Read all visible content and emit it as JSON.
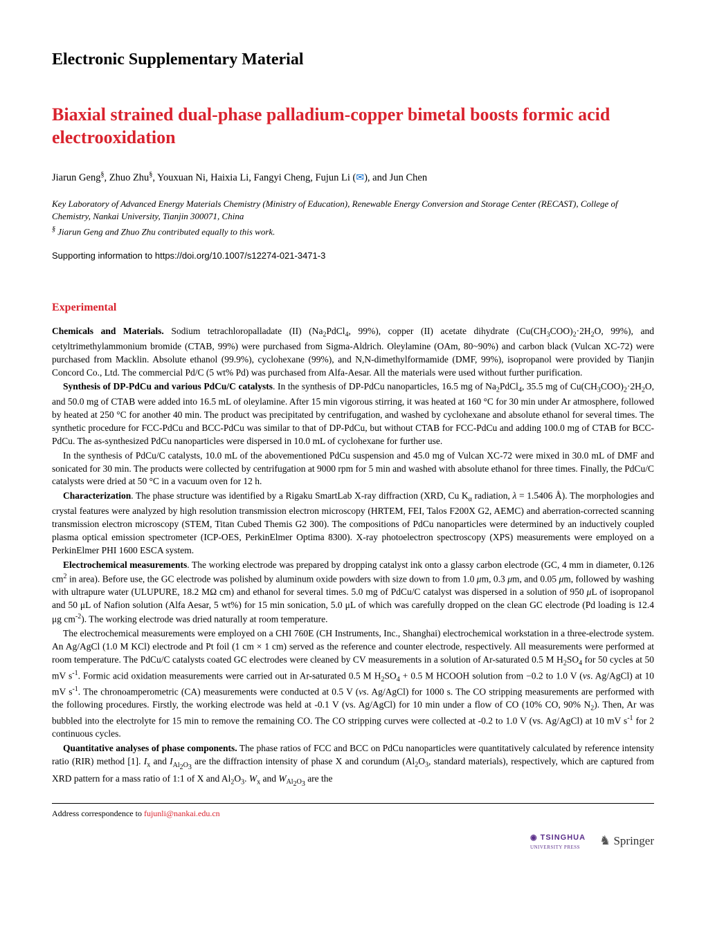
{
  "supp_heading": "Electronic Supplementary Material",
  "title": "Biaxial strained dual-phase palladium-copper bimetal boosts formic acid electrooxidation",
  "authors_html": "Jiarun Geng<sup>§</sup>, Zhuo Zhu<sup>§</sup>, Youxuan Ni, Haixia Li, Fangyi Cheng, Fujun Li (<span class='envelope-icon' data-name='envelope-icon' data-interactable='false'>✉</span>), and Jun Chen",
  "affiliation_html": "Key Laboratory of Advanced Energy Materials Chemistry (Ministry of Education), Renewable Energy Conversion and Storage Center (RECAST), College of Chemistry, Nankai University, Tianjin 300071, China",
  "equal_html": "<sup>§</sup> Jiarun Geng and Zhuo Zhu contributed equally to this work.",
  "supporting_link": "Supporting information to https://doi.org/10.1007/s12274-021-3471-3",
  "section_heading": "Experimental",
  "p1_html": "<span class='subsection-label'>Chemicals and Materials.</span> Sodium tetrachloropalladate (II) (Na<sub>2</sub>PdCl<sub>4</sub>, 99%), copper (II) acetate dihydrate (Cu(CH<sub>3</sub>COO)<sub>2</sub>·2H<sub>2</sub>O, 99%), and cetyltrimethylammonium bromide (CTAB, 99%) were purchased from Sigma-Aldrich. Oleylamine (OAm, 80~90%) and carbon black (Vulcan XC-72) were purchased from Macklin. Absolute ethanol (99.9%), cyclohexane (99%), and N,N-dimethylformamide (DMF, 99%), isopropanol were provided by Tianjin Concord Co., Ltd. The commercial Pd/C (5 wt% Pd) was purchased from Alfa-Aesar. All the materials were used without further purification.",
  "p2_html": "<span class='subsection-label'>Synthesis of DP-PdCu and various PdCu/C catalysts</span>. In the synthesis of DP-PdCu nanoparticles, 16.5 mg of Na<sub>2</sub>PdCl<sub>4</sub>, 35.5 mg of Cu(CH<sub>3</sub>COO)<sub>2</sub>·2H<sub>2</sub>O, and 50.0 mg of CTAB were added into 16.5 mL of oleylamine. After 15 min vigorous stirring, it was heated at 160 °C for 30 min under Ar atmosphere, followed by heated at 250 °C for another 40 min. The product was precipitated by centrifugation, and washed by cyclohexane and absolute ethanol for several times. The synthetic procedure for FCC-PdCu and BCC-PdCu was similar to that of DP-PdCu, but without CTAB for FCC-PdCu and adding 100.0 mg of CTAB for BCC-PdCu. The as-synthesized PdCu nanoparticles were dispersed in 10.0 mL of cyclohexane for further use.",
  "p3_html": "In the synthesis of PdCu/C catalysts, 10.0 mL of the abovementioned PdCu suspension and 45.0 mg of Vulcan XC-72 were mixed in 30.0 mL of DMF and sonicated for 30 min. The products were collected by centrifugation at 9000 rpm for 5 min and washed with absolute ethanol for three times. Finally, the PdCu/C catalysts were dried at 50 °C in a vacuum oven for 12 h.",
  "p4_html": "<span class='subsection-label'>Characterization</span>. The phase structure was identified by a Rigaku SmartLab X-ray diffraction (XRD, Cu K<sub>α</sub> radiation, <i>λ</i> = 1.5406 Å). The morphologies and crystal features were analyzed by high resolution transmission electron microscopy (HRTEM, FEI, Talos F200X G2, AEMC) and aberration-corrected scanning transmission electron microscopy (STEM, Titan Cubed Themis G2 300). The compositions of PdCu nanoparticles were determined by an inductively coupled plasma optical emission spectrometer (ICP-OES, PerkinElmer Optima 8300). X-ray photoelectron spectroscopy (XPS) measurements were employed on a PerkinElmer PHI 1600 ESCA system.",
  "p5_html": "<span class='subsection-label'>Electrochemical measurements</span>. The working electrode was prepared by dropping catalyst ink onto a glassy carbon electrode (GC, 4 mm in diameter, 0.126 cm<sup>2</sup> in area). Before use, the GC electrode was polished by aluminum oxide powders with size down to from 1.0 <i>μ</i>m, 0.3 <i>μ</i>m, and 0.05 <i>μ</i>m, followed by washing with ultrapure water (ULUPURE, 18.2 MΩ cm) and ethanol for several times. 5.0 mg of PdCu/C catalyst was dispersed in a solution of 950 <i>μ</i>L of isopropanol and 50 μL of Nafion solution (Alfa Aesar, 5 wt%) for 15 min sonication, 5.0 μL of which was carefully dropped on the clean GC electrode (Pd loading is 12.4 μg cm<sup>-2</sup>). The working electrode was dried naturally at room temperature.",
  "p6_html": "The electrochemical measurements were employed on a CHI 760E (CH Instruments, Inc., Shanghai) electrochemical workstation in a three-electrode system. An Ag/AgCl (1.0 M KCl) electrode and Pt foil (1 cm × 1 cm) served as the reference and counter electrode, respectively. All measurements were performed at room temperature. The PdCu/C catalysts coated GC electrodes were cleaned by CV measurements in a solution of Ar-saturated 0.5 M H<sub>2</sub>SO<sub>4</sub> for 50 cycles at 50 mV s<sup>-1</sup>. Formic acid oxidation measurements were carried out in Ar-saturated 0.5 M H<sub>2</sub>SO<sub>4</sub> + 0.5 M HCOOH solution from −0.2 to 1.0 V (<i>vs</i>. Ag/AgCl) at 10 mV s<sup>-1</sup>. The chronoamperometric (CA) measurements were conducted at 0.5 V (<i>vs</i>. Ag/AgCl) for 1000 s. The CO stripping measurements are performed with the following procedures. Firstly, the working electrode was held at -0.1 V (vs. Ag/AgCl) for 10 min under a flow of CO (10% CO, 90% N<sub>2</sub>). Then, Ar was bubbled into the electrolyte for 15 min to remove the remaining CO. The CO stripping curves were collected at -0.2 to 1.0 V (vs. Ag/AgCl) at 10 mV s<sup>-1</sup> for 2 continuous cycles.",
  "p7_html": "<span class='subsection-label'>Quantitative analyses of phase components.</span> The phase ratios of FCC and BCC on PdCu nanoparticles were quantitatively calculated by reference intensity ratio (RIR) method [1]. <i>I</i><sub>x</sub> and <i>I</i><sub>Al<sub>2</sub>O<sub>3</sub></sub> are the diffraction intensity of phase X and corundum (Al<sub>2</sub>O<sub>3</sub>, standard materials), respectively, which are captured from XRD pattern for a mass ratio of 1:1 of X and Al<sub>2</sub>O<sub>3</sub>. <i>W</i><sub>x</sub> and <i>W</i><sub>Al<sub>2</sub>O<sub>3</sub></sub> are the",
  "footer_label": "Address correspondence to ",
  "footer_email": "fujunli@nankai.edu.cn",
  "logo_tsinghua": "TSINGHUA",
  "logo_tsinghua_sub": "UNIVERSITY PRESS",
  "logo_springer": "Springer",
  "colors": {
    "accent_red": "#d9232e",
    "link_blue": "#0066cc",
    "tsinghua_purple": "#5a2e8a",
    "text": "#000000",
    "background": "#ffffff"
  },
  "typography": {
    "body_font": "Times New Roman",
    "body_size_pt": 10,
    "title_size_pt": 19,
    "heading_size_pt": 12
  }
}
